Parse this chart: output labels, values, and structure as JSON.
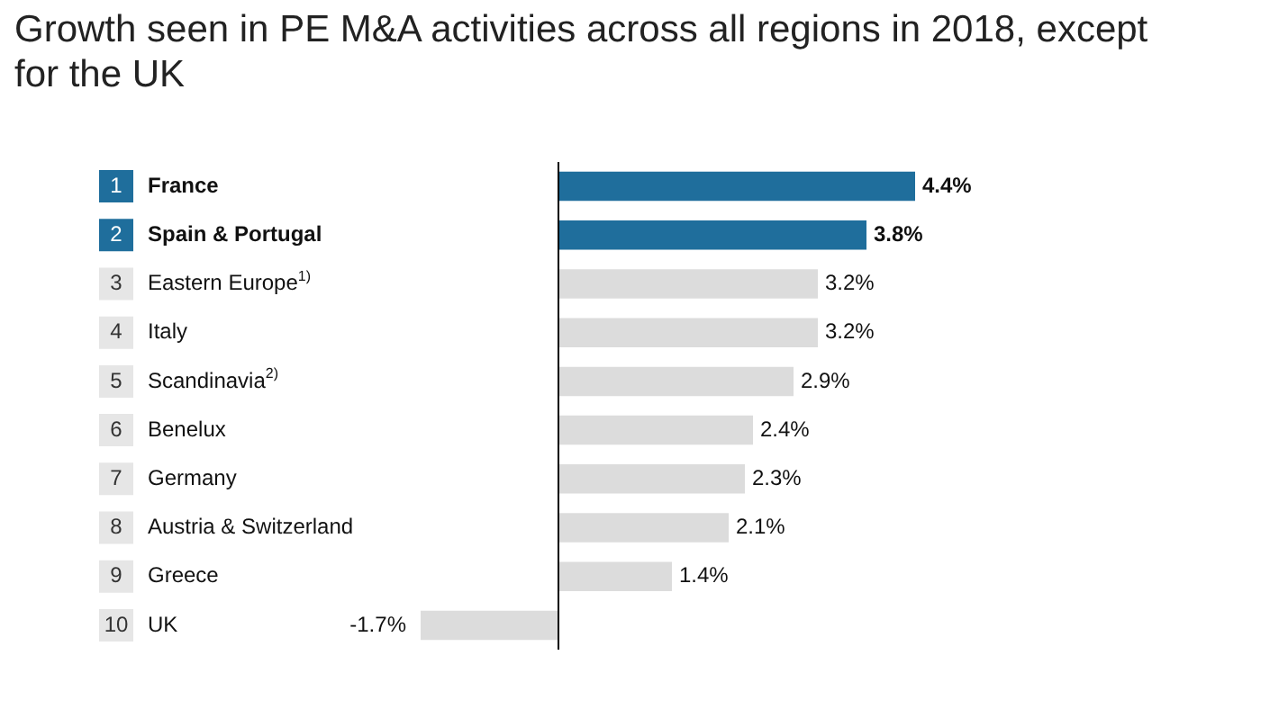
{
  "chart_data": {
    "type": "bar",
    "orientation": "horizontal",
    "title": "Growth seen in PE M&A activities across all regions in 2018, except for the UK",
    "categories": [
      "France",
      "Spain & Portugal",
      "Eastern Europe$^{1)}$",
      "Italy",
      "Scandinavia$^{2)}$",
      "Benelux",
      "Germany",
      "Austria & Switzerland",
      "Greece",
      "UK"
    ],
    "values": [
      4.4,
      3.8,
      3.2,
      3.2,
      2.9,
      2.4,
      2.3,
      2.1,
      1.4,
      -1.7
    ],
    "value_labels": [
      "4.4%",
      "3.8%",
      "3.2%",
      "3.2%",
      "2.9%",
      "2.4%",
      "2.3%",
      "2.1%",
      "1.4%",
      "-1.7%"
    ],
    "colors": [
      "#1f6e9c",
      "#1f6e9c",
      "#dcdcdc",
      "#dcdcdc",
      "#dcdcdc",
      "#dcdcdc",
      "#dcdcdc",
      "#dcdcdc",
      "#dcdcdc",
      "#dcdcdc"
    ],
    "annotations": [
      "1",
      "2",
      "3",
      "4",
      "5",
      "6",
      "7",
      "8",
      "9",
      "10"
    ],
    "legend": false
  }
}
